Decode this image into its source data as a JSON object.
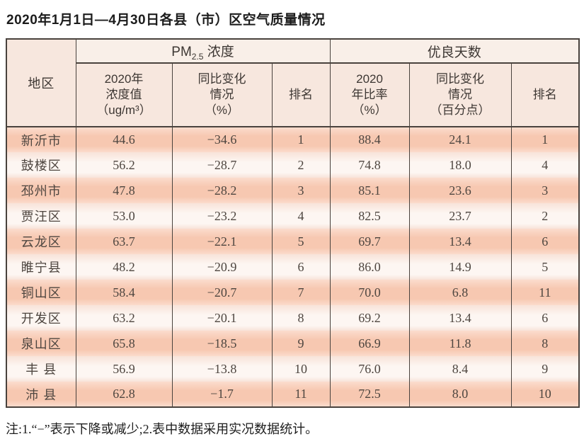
{
  "chart_data": {
    "type": "table",
    "title": "2020年1月1日—4月30日各县（市）区空气质量情况",
    "note": "注:1.“−”表示下降或减少;2.表中数据采用实况数据统计。",
    "header": {
      "region": "地区",
      "group_pm25": {
        "prefix": "PM",
        "subscript": "2.5",
        "suffix": " 浓度"
      },
      "group_good_days": "优良天数",
      "subcolumns": [
        "2020年\n浓度值\n（ug/m³）",
        "同比变化\n情况\n（%）",
        "排名",
        "2020\n年比率\n（%）",
        "同比变化\n情况\n（百分点）",
        "排名"
      ]
    },
    "columns_semantic": [
      "region",
      "pm25_2020_concentration_ug_m3",
      "pm25_yoy_change_pct",
      "pm25_rank",
      "good_days_2020_ratio_pct",
      "good_days_yoy_change_points",
      "good_days_rank"
    ],
    "rows": [
      [
        "新沂市",
        "44.6",
        "−34.6",
        "1",
        "88.4",
        "24.1",
        "1"
      ],
      [
        "鼓楼区",
        "56.2",
        "−28.7",
        "2",
        "74.8",
        "18.0",
        "4"
      ],
      [
        "邳州市",
        "47.8",
        "−28.2",
        "3",
        "85.1",
        "23.6",
        "3"
      ],
      [
        "贾汪区",
        "53.0",
        "−23.2",
        "4",
        "82.5",
        "23.7",
        "2"
      ],
      [
        "云龙区",
        "63.7",
        "−22.1",
        "5",
        "69.7",
        "13.4",
        "6"
      ],
      [
        "睢宁县",
        "48.2",
        "−20.9",
        "6",
        "86.0",
        "14.9",
        "5"
      ],
      [
        "铜山区",
        "58.4",
        "−20.7",
        "7",
        "70.0",
        "6.8",
        "11"
      ],
      [
        "开发区",
        "63.2",
        "−20.1",
        "8",
        "69.2",
        "13.4",
        "6"
      ],
      [
        "泉山区",
        "65.8",
        "−18.5",
        "9",
        "66.9",
        "11.8",
        "8"
      ],
      [
        "丰 县",
        "56.9",
        "−13.8",
        "10",
        "76.0",
        "8.4",
        "9"
      ],
      [
        "沛 县",
        "62.8",
        "−1.7",
        "11",
        "72.5",
        "8.0",
        "10"
      ]
    ],
    "colors": {
      "border": "#49423d",
      "header_bg": "#f7e7de",
      "group_header_bg": "#f9efe8",
      "row_odd_bg": "#f7c8b1",
      "row_even_bg": "#fdf6f2",
      "text": "#4e4640"
    },
    "layout": {
      "grid": "off",
      "legend": "none"
    }
  }
}
